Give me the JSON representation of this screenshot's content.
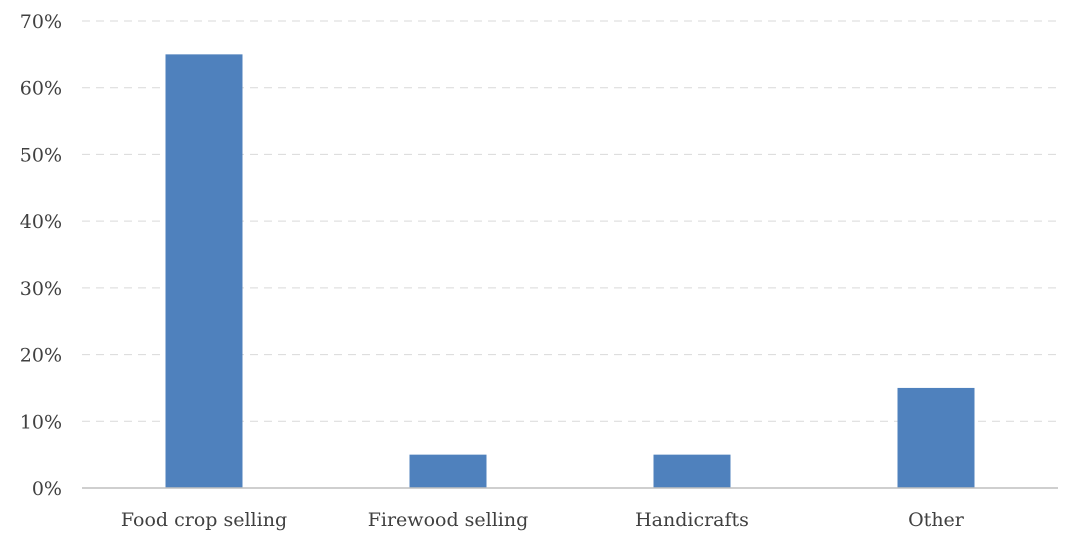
{
  "chart_data": {
    "type": "bar",
    "title": "",
    "xlabel": "",
    "ylabel": "",
    "categories": [
      "Food crop selling",
      "Firewood selling",
      "Handicrafts",
      "Other"
    ],
    "values": [
      65,
      5,
      5,
      15
    ],
    "ylim": [
      0,
      70
    ],
    "yticks": [
      "0%",
      "10%",
      "20%",
      "30%",
      "40%",
      "50%",
      "60%",
      "70%"
    ],
    "grid": true,
    "legend": "none",
    "colors": {
      "bar": "#4F81BD",
      "grid": "#D9D9D9",
      "axis": "#BFBFBF",
      "text": "#404040"
    }
  }
}
